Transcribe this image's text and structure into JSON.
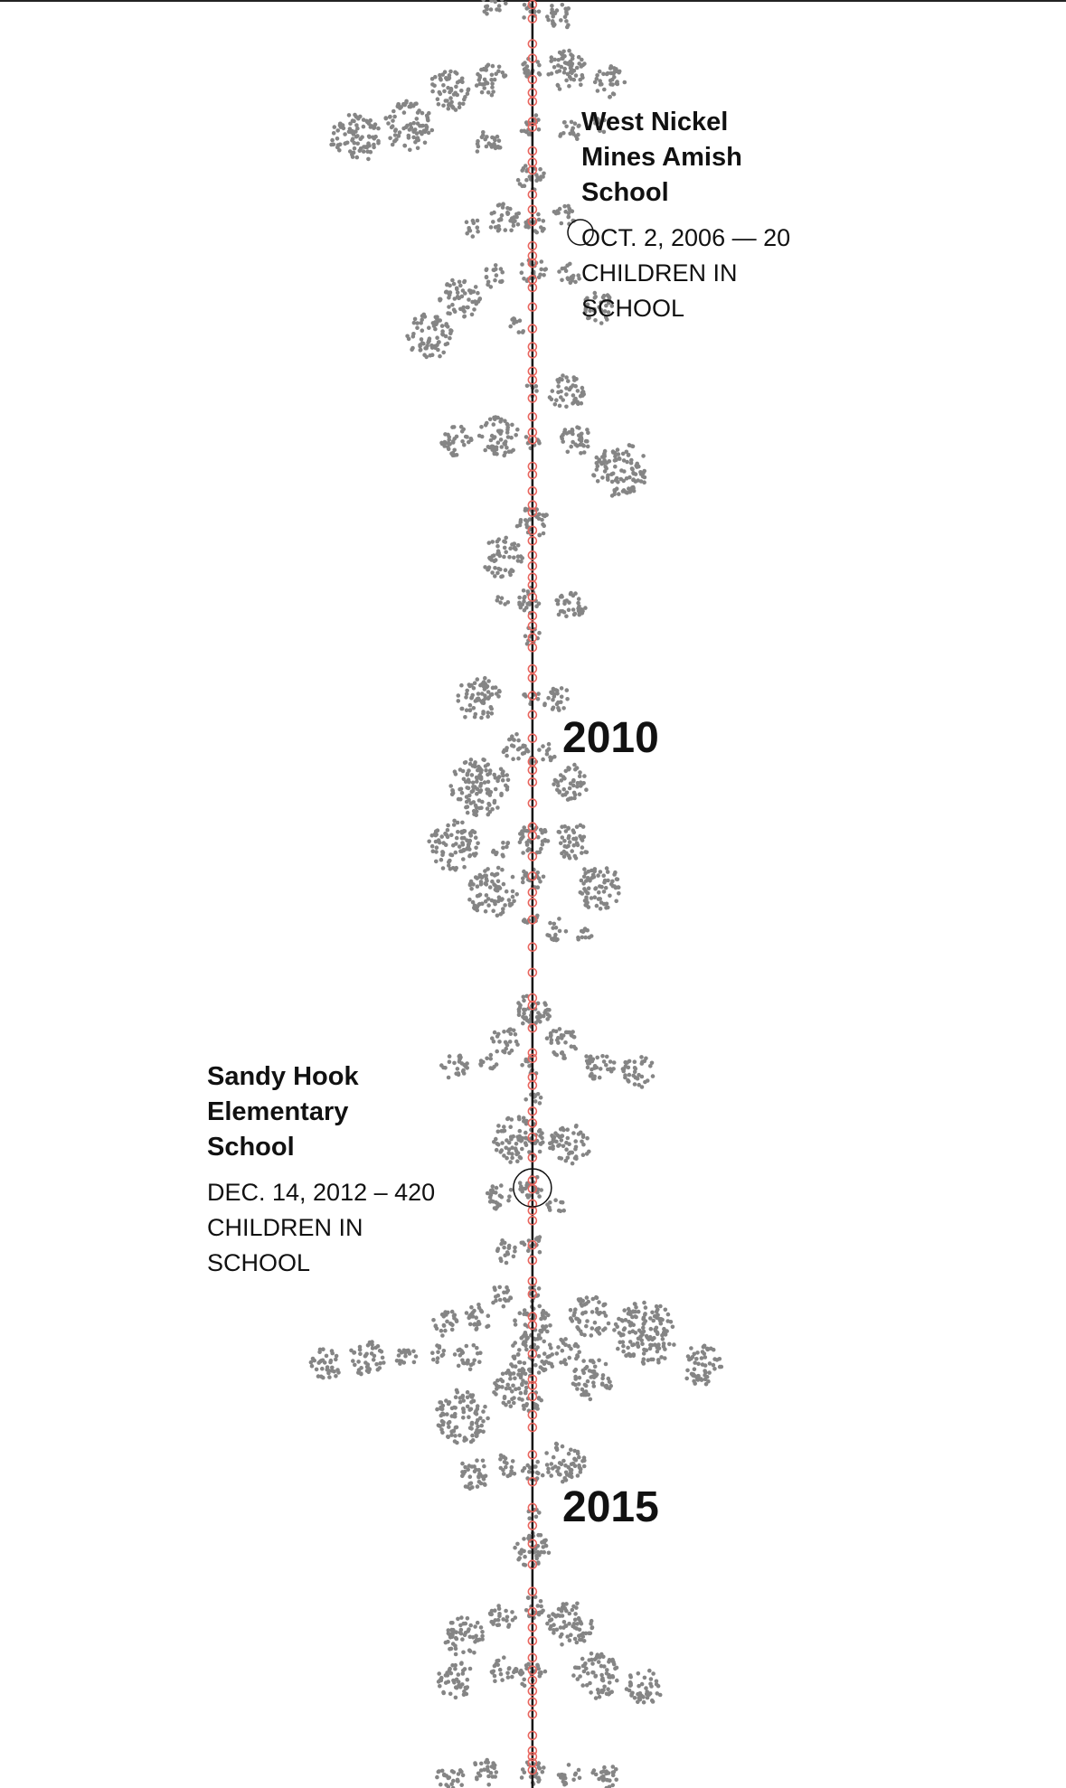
{
  "annotations": [
    {
      "title": "West Nickel Mines Amish School",
      "detail": "OCT. 2, 2006 — 20 CHILDREN IN SCHOOL"
    },
    {
      "title": "Sandy Hook Elementary School",
      "detail": "DEC. 14, 2012 – 420 CHILDREN IN SCHOOL"
    }
  ],
  "year_labels": [
    "2010",
    "2015"
  ]
}
